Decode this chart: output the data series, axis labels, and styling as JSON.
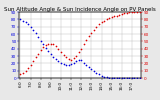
{
  "title": "Sun Altitude Angle & Sun Incidence Angle on PV Panels",
  "bg_color": "#e8e8e8",
  "plot_bg": "#ffffff",
  "blue_x": [
    0,
    1,
    2,
    3,
    4,
    5,
    6,
    7,
    8,
    9,
    10,
    11,
    12,
    13,
    14,
    15,
    16,
    17,
    18,
    19,
    20,
    21,
    22,
    23,
    24,
    25,
    26,
    27,
    28,
    29,
    30,
    31,
    32,
    33,
    34,
    35,
    36,
    37,
    38,
    39,
    40,
    41,
    42,
    43,
    44,
    45,
    46,
    47
  ],
  "blue_y": [
    80,
    78,
    76,
    73,
    69,
    65,
    61,
    56,
    51,
    46,
    41,
    37,
    33,
    29,
    26,
    23,
    21,
    19,
    18,
    18,
    19,
    21,
    23,
    25,
    24,
    21,
    18,
    15,
    12,
    9,
    7,
    5,
    3,
    2,
    1,
    0,
    0,
    0,
    0,
    0,
    0,
    0,
    0,
    0,
    0,
    0,
    0,
    0
  ],
  "red_x": [
    0,
    1,
    2,
    3,
    4,
    5,
    6,
    7,
    8,
    9,
    10,
    11,
    12,
    13,
    14,
    15,
    16,
    17,
    18,
    19,
    20,
    21,
    22,
    23,
    24,
    25,
    26,
    27,
    28,
    29,
    30,
    31,
    32,
    33,
    34,
    35,
    36,
    37,
    38,
    39,
    40,
    41,
    42,
    43,
    44,
    45,
    46,
    47
  ],
  "red_y": [
    5,
    7,
    10,
    14,
    18,
    23,
    28,
    33,
    38,
    42,
    45,
    47,
    47,
    46,
    43,
    40,
    36,
    32,
    28,
    26,
    25,
    27,
    30,
    35,
    40,
    46,
    52,
    57,
    62,
    66,
    70,
    73,
    76,
    78,
    80,
    82,
    83,
    84,
    85,
    86,
    87,
    88,
    89,
    90,
    90,
    90,
    90,
    90
  ],
  "blue_color": "#0000dd",
  "red_color": "#dd0000",
  "ylim_left": [
    0,
    90
  ],
  "ylim_right": [
    0,
    90
  ],
  "yticks_left": [
    0,
    10,
    20,
    30,
    40,
    50,
    60,
    70,
    80,
    90
  ],
  "yticks_right": [
    0,
    10,
    20,
    30,
    40,
    50,
    60,
    70,
    80,
    90
  ],
  "x_ticks": [
    0,
    4,
    8,
    12,
    16,
    20,
    24,
    28,
    32,
    36,
    40,
    44
  ],
  "x_tick_labels": [
    "6:0",
    "7:0",
    "8:0",
    "9:0",
    "10:0",
    "11:0",
    "12:0",
    "13:0",
    "14:0",
    "15:0",
    "16:0",
    "17:0"
  ],
  "grid_color": "#bbbbbb",
  "title_fontsize": 4,
  "tick_fontsize": 3,
  "label_fontsize": 3,
  "marker_size": 1.5
}
